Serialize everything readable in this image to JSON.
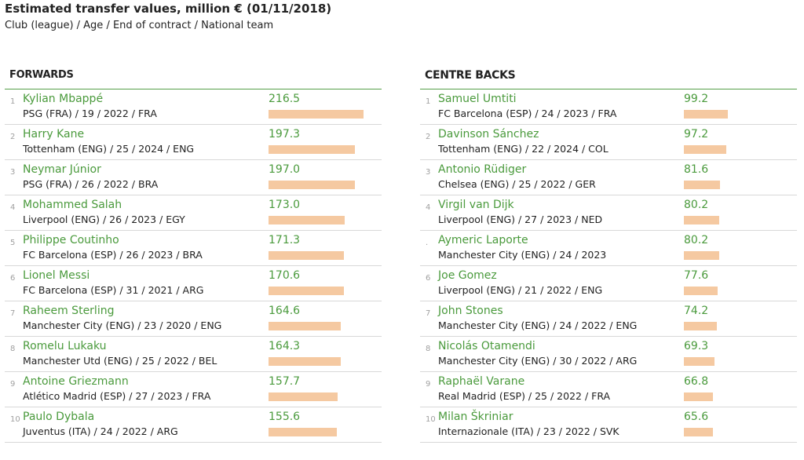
{
  "header": {
    "title": "Estimated transfer values, million € (01/11/2018)",
    "subtitle": "Club (league) / Age / End of contract / National team"
  },
  "chart_data": [
    {
      "type": "bar",
      "orientation": "horizontal",
      "title": "FORWARDS",
      "bar_color": "#f5c9a1",
      "name_color": "#4a9a3c",
      "players": [
        {
          "rank": "1",
          "name": "Kylian Mbappé",
          "info": "PSG (FRA) / 19 / 2022 / FRA",
          "value": 216.5,
          "value_label": "216.5"
        },
        {
          "rank": "2",
          "name": "Harry Kane",
          "info": "Tottenham (ENG) / 25 / 2024 / ENG",
          "value": 197.3,
          "value_label": "197.3"
        },
        {
          "rank": "3",
          "name": "Neymar Júnior",
          "info": "PSG (FRA) / 26 / 2022 / BRA",
          "value": 197.0,
          "value_label": "197.0"
        },
        {
          "rank": "4",
          "name": "Mohammed Salah",
          "info": "Liverpool (ENG) / 26 / 2023 / EGY",
          "value": 173.0,
          "value_label": "173.0"
        },
        {
          "rank": "5",
          "name": "Philippe Coutinho",
          "info": "FC Barcelona (ESP) / 26 / 2023 / BRA",
          "value": 171.3,
          "value_label": "171.3"
        },
        {
          "rank": "6",
          "name": "Lionel Messi",
          "info": "FC Barcelona (ESP) / 31 / 2021 / ARG",
          "value": 170.6,
          "value_label": "170.6"
        },
        {
          "rank": "7",
          "name": "Raheem Sterling",
          "info": "Manchester City (ENG) / 23 / 2020 / ENG",
          "value": 164.6,
          "value_label": "164.6"
        },
        {
          "rank": "8",
          "name": "Romelu Lukaku",
          "info": "Manchester Utd (ENG) / 25 / 2022 / BEL",
          "value": 164.3,
          "value_label": "164.3"
        },
        {
          "rank": "9",
          "name": "Antoine Griezmann",
          "info": "Atlético Madrid (ESP) / 27 / 2023 / FRA",
          "value": 157.7,
          "value_label": "157.7"
        },
        {
          "rank": "10",
          "name": "Paulo Dybala",
          "info": "Juventus (ITA) / 24 / 2022 / ARG",
          "value": 155.6,
          "value_label": "155.6"
        }
      ]
    },
    {
      "type": "bar",
      "orientation": "horizontal",
      "title": "CENTRE BACKS",
      "bar_color": "#f5c9a1",
      "name_color": "#4a9a3c",
      "players": [
        {
          "rank": "1",
          "name": "Samuel Umtiti",
          "info": "FC Barcelona (ESP) / 24 / 2023 / FRA",
          "value": 99.2,
          "value_label": "99.2"
        },
        {
          "rank": "2",
          "name": "Davinson Sánchez",
          "info": "Tottenham (ENG) / 22 / 2024 / COL",
          "value": 97.2,
          "value_label": "97.2"
        },
        {
          "rank": "3",
          "name": "Antonio Rüdiger",
          "info": "Chelsea (ENG) / 25 / 2022 / GER",
          "value": 81.6,
          "value_label": "81.6"
        },
        {
          "rank": "4",
          "name": "Virgil van Dijk",
          "info": "Liverpool (ENG) / 27 / 2023 / NED",
          "value": 80.2,
          "value_label": "80.2"
        },
        {
          "rank": ".",
          "name": "Aymeric Laporte",
          "info": "Manchester City (ENG) / 24 / 2023",
          "value": 80.2,
          "value_label": "80.2"
        },
        {
          "rank": "6",
          "name": "Joe Gomez",
          "info": "Liverpool (ENG) / 21 / 2022 / ENG",
          "value": 77.6,
          "value_label": "77.6"
        },
        {
          "rank": "7",
          "name": "John Stones",
          "info": "Manchester City (ENG) / 24 / 2022 / ENG",
          "value": 74.2,
          "value_label": "74.2"
        },
        {
          "rank": "8",
          "name": "Nicolás Otamendi",
          "info": "Manchester City (ENG) / 30 / 2022 / ARG",
          "value": 69.3,
          "value_label": "69.3"
        },
        {
          "rank": "9",
          "name": "Raphaël Varane",
          "info": "Real Madrid (ESP) / 25 / 2022 / FRA",
          "value": 66.8,
          "value_label": "66.8"
        },
        {
          "rank": "10",
          "name": "Milan Škriniar",
          "info": "Internazionale (ITA) / 23 / 2022 / SVK",
          "value": 65.6,
          "value_label": "65.6"
        }
      ]
    }
  ]
}
